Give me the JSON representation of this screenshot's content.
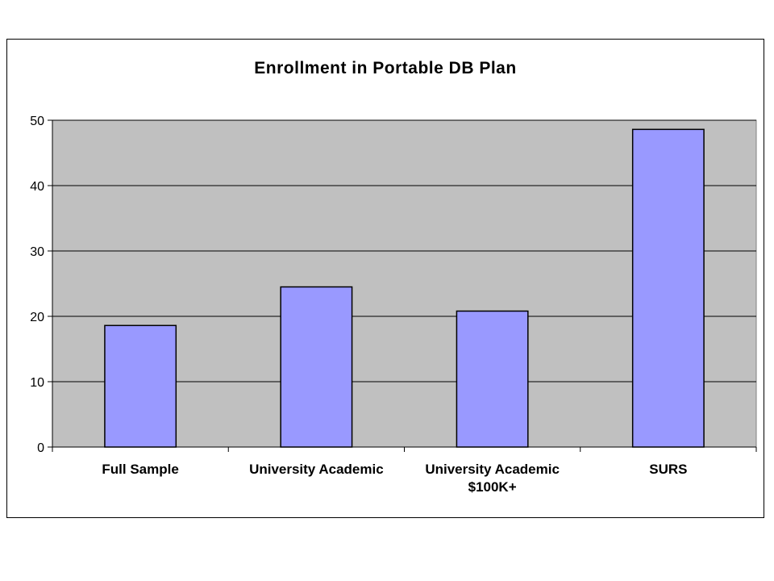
{
  "chart_data": {
    "type": "bar",
    "title": "Enrollment in Portable DB Plan",
    "xlabel": "",
    "ylabel": "",
    "categories": [
      [
        "Full Sample"
      ],
      [
        "University Academic"
      ],
      [
        "University Academic",
        "$100K+"
      ],
      [
        "SURS"
      ]
    ],
    "values": [
      18.6,
      24.5,
      20.8,
      48.6
    ],
    "ylim": [
      0,
      50
    ],
    "yticks": [
      0,
      10,
      20,
      30,
      40,
      50
    ],
    "grid": true,
    "legend": "none",
    "colors": {
      "bar_fill": "#9999ff",
      "plot_background": "#c0c0c0",
      "gridline": "#000000"
    }
  }
}
